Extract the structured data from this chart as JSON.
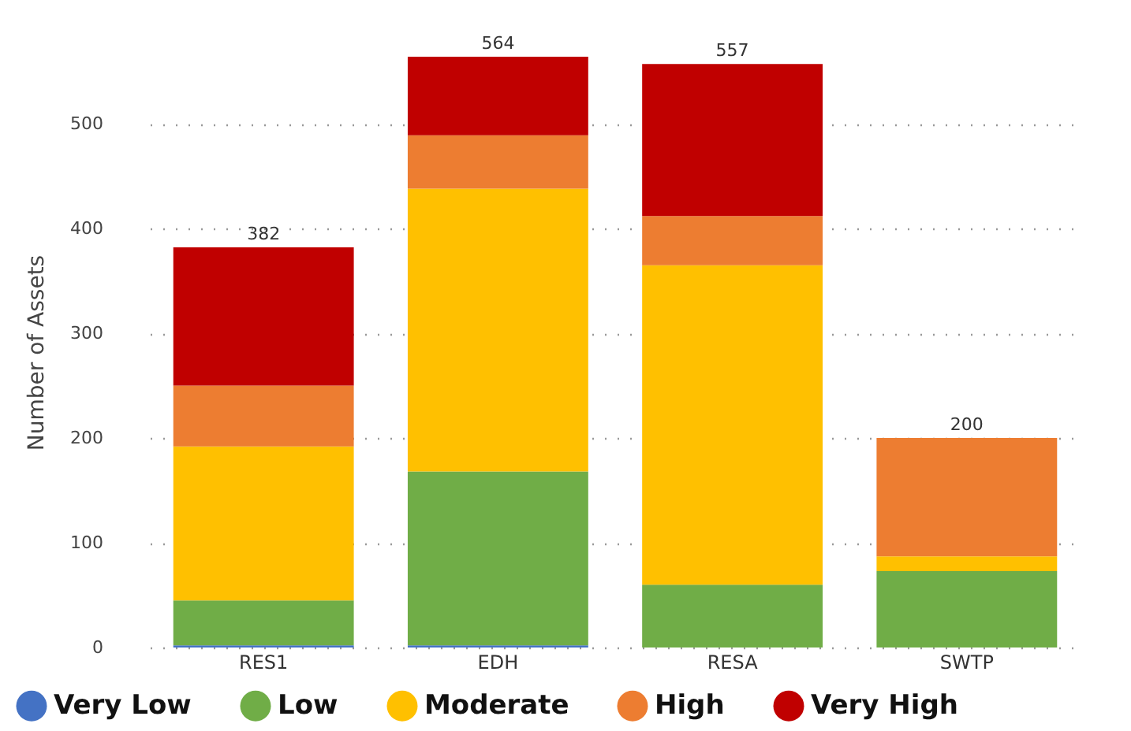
{
  "chart_data": {
    "type": "bar",
    "stacked": true,
    "ylabel": "Number of Assets",
    "categories": [
      "RES1",
      "EDH",
      "RESA",
      "SWTP"
    ],
    "series": [
      {
        "name": "Very Low",
        "color": "#4472c4",
        "values": [
          2,
          2,
          0,
          0
        ]
      },
      {
        "name": "Low",
        "color": "#70ad47",
        "values": [
          43,
          166,
          60,
          73
        ]
      },
      {
        "name": "Moderate",
        "color": "#ffc000",
        "values": [
          147,
          270,
          305,
          14
        ]
      },
      {
        "name": "High",
        "color": "#ed7d31",
        "values": [
          58,
          51,
          47,
          113
        ]
      },
      {
        "name": "Very High",
        "color": "#c00000",
        "values": [
          132,
          75,
          145,
          0
        ]
      }
    ],
    "totals": [
      "382",
      "564",
      "557",
      "200"
    ],
    "ylim": [
      0,
      564
    ],
    "yticks": [
      0,
      100,
      200,
      300,
      400,
      500
    ],
    "grid": "y",
    "legend": "bottom"
  }
}
